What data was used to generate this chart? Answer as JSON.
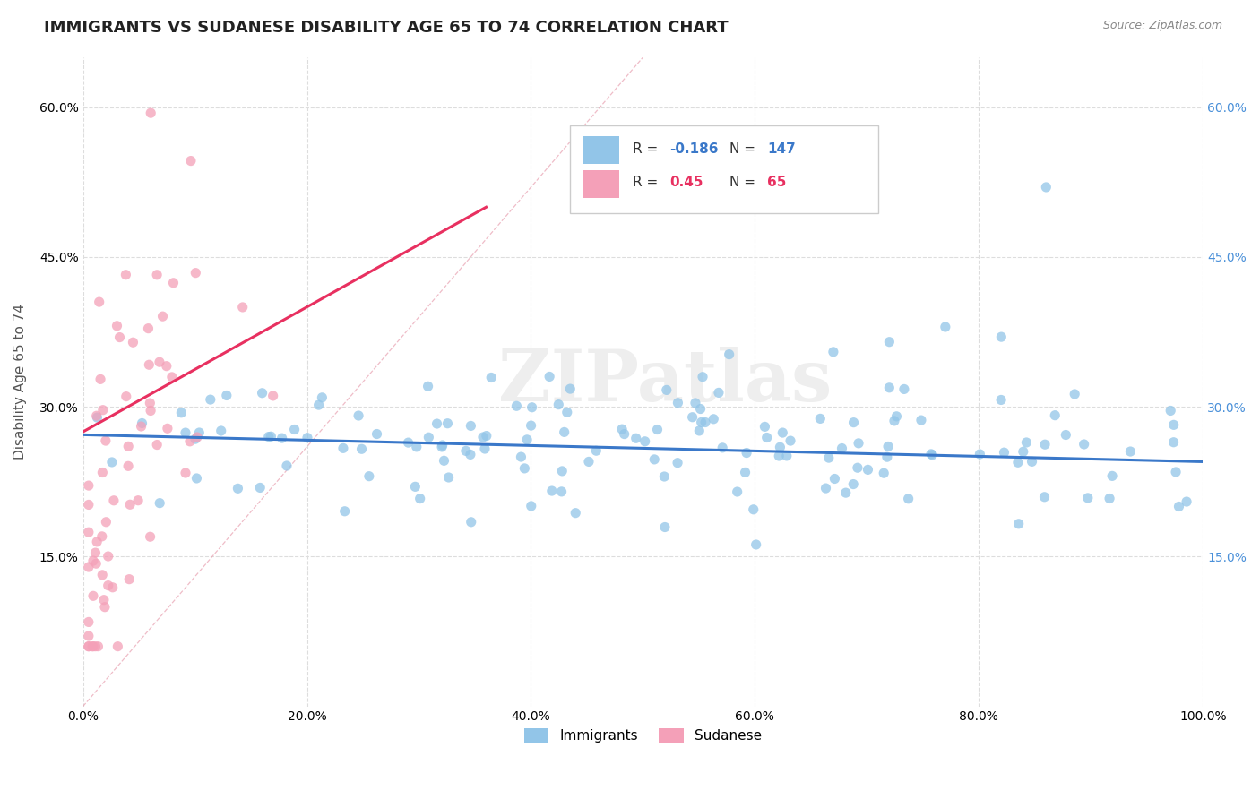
{
  "title": "IMMIGRANTS VS SUDANESE DISABILITY AGE 65 TO 74 CORRELATION CHART",
  "source_text": "Source: ZipAtlas.com",
  "ylabel": "Disability Age 65 to 74",
  "xlim": [
    0.0,
    1.0
  ],
  "ylim": [
    0.0,
    0.65
  ],
  "xticks": [
    0.0,
    0.2,
    0.4,
    0.6,
    0.8,
    1.0
  ],
  "xtick_labels": [
    "0.0%",
    "20.0%",
    "40.0%",
    "60.0%",
    "80.0%",
    "100.0%"
  ],
  "yticks": [
    0.15,
    0.3,
    0.45,
    0.6
  ],
  "ytick_labels": [
    "15.0%",
    "30.0%",
    "45.0%",
    "60.0%"
  ],
  "immigrants_color": "#92C5E8",
  "sudanese_color": "#F4A0B8",
  "immigrants_line_color": "#3A78C9",
  "sudanese_line_color": "#E83060",
  "R_immigrants": -0.186,
  "N_immigrants": 147,
  "R_sudanese": 0.45,
  "N_sudanese": 65,
  "legend_label_immigrants": "Immigrants",
  "legend_label_sudanese": "Sudanese",
  "watermark_text": "ZIPatlas",
  "background_color": "#FFFFFF",
  "grid_color": "#DDDDDD",
  "title_fontsize": 13,
  "axis_label_fontsize": 11,
  "tick_fontsize": 10,
  "right_tick_color": "#4A90D9",
  "legend_R_color_imm": "#3A78C9",
  "legend_N_color_imm": "#3A78C9",
  "legend_R_color_sud": "#E83060",
  "legend_N_color_sud": "#E83060"
}
